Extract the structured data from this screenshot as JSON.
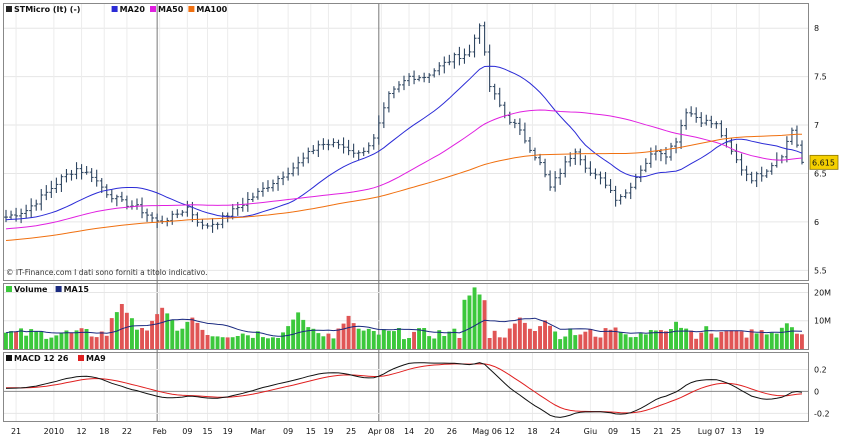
{
  "chart_data": [
    {
      "type": "ohlc",
      "panel": "price",
      "legend": [
        {
          "label": "STMicro (It) (-)",
          "color": "#222222"
        },
        {
          "label": "MA20",
          "color": "#2b2bd6"
        },
        {
          "label": "MA50",
          "color": "#e020e0"
        },
        {
          "label": "MA100",
          "color": "#f07010"
        }
      ],
      "yticks": [
        "8",
        "7.5",
        "7",
        "6.5",
        "6",
        "5.5"
      ],
      "ylim": [
        5.4,
        8.25
      ],
      "last_value_label": "6.615",
      "last_value": 6.615,
      "source_note": "© IT-Finance.com  I dati sono forniti a titolo indicativo.",
      "price_anchors": [
        [
          0,
          6.05
        ],
        [
          4,
          6.12
        ],
        [
          8,
          6.3
        ],
        [
          11,
          6.45
        ],
        [
          14,
          6.55
        ],
        [
          17,
          6.48
        ],
        [
          20,
          6.3
        ],
        [
          23,
          6.2
        ],
        [
          26,
          6.15
        ],
        [
          30,
          6.0
        ],
        [
          33,
          6.05
        ],
        [
          36,
          6.15
        ],
        [
          39,
          5.95
        ],
        [
          42,
          6.0
        ],
        [
          46,
          6.15
        ],
        [
          50,
          6.3
        ],
        [
          54,
          6.45
        ],
        [
          58,
          6.6
        ],
        [
          62,
          6.8
        ],
        [
          66,
          6.8
        ],
        [
          70,
          6.7
        ],
        [
          73,
          6.85
        ],
        [
          76,
          7.3
        ],
        [
          78,
          7.4
        ],
        [
          80,
          7.5
        ],
        [
          83,
          7.5
        ],
        [
          86,
          7.6
        ],
        [
          89,
          7.7
        ],
        [
          92,
          7.75
        ],
        [
          94,
          8.05
        ],
        [
          96,
          7.4
        ],
        [
          99,
          7.1
        ],
        [
          101,
          7.0
        ],
        [
          103,
          6.85
        ],
        [
          106,
          6.6
        ],
        [
          108,
          6.35
        ],
        [
          111,
          6.6
        ],
        [
          113,
          6.75
        ],
        [
          116,
          6.5
        ],
        [
          119,
          6.4
        ],
        [
          121,
          6.25
        ],
        [
          123,
          6.3
        ],
        [
          126,
          6.55
        ],
        [
          129,
          6.75
        ],
        [
          131,
          6.7
        ],
        [
          133,
          6.85
        ],
        [
          135,
          7.15
        ],
        [
          138,
          7.05
        ],
        [
          141,
          7.0
        ],
        [
          143,
          6.8
        ],
        [
          146,
          6.55
        ],
        [
          148,
          6.45
        ],
        [
          150,
          6.5
        ],
        [
          152,
          6.6
        ],
        [
          154,
          6.7
        ],
        [
          156,
          6.95
        ],
        [
          157,
          6.8
        ],
        [
          158,
          6.615
        ]
      ]
    },
    {
      "type": "bar",
      "panel": "volume",
      "legend": [
        {
          "label": "Volume",
          "color": "#3cc83c"
        },
        {
          "label": "MA15",
          "color": "#1a2a80"
        }
      ],
      "yticks": [
        "20M",
        "10M"
      ],
      "ylim": [
        0,
        23
      ],
      "colors": {
        "up": "#3cc83c",
        "down": "#e05555"
      },
      "peaks": [
        [
          23,
          15
        ],
        [
          31,
          14
        ],
        [
          37,
          11
        ],
        [
          58,
          12
        ],
        [
          68,
          11
        ],
        [
          93,
          21
        ],
        [
          102,
          11
        ],
        [
          107,
          10
        ],
        [
          121,
          7.5
        ],
        [
          133,
          9
        ],
        [
          139,
          7.5
        ],
        [
          155,
          9
        ]
      ]
    },
    {
      "type": "line",
      "panel": "macd",
      "legend": [
        {
          "label": "MACD 12 26",
          "color": "#111111"
        },
        {
          "label": "MA9",
          "color": "#e02020"
        }
      ],
      "yticks": [
        "0.2",
        "0",
        "-0.2"
      ],
      "ylim": [
        -0.27,
        0.35
      ]
    }
  ],
  "x_axis": {
    "labels": [
      {
        "text": "21",
        "bar": 2
      },
      {
        "text": "2010",
        "bar": 9.5
      },
      {
        "text": "12",
        "bar": 15
      },
      {
        "text": "18",
        "bar": 19.5
      },
      {
        "text": "22",
        "bar": 24
      },
      {
        "text": "Feb",
        "bar": 30.5
      },
      {
        "text": "09",
        "bar": 36
      },
      {
        "text": "15",
        "bar": 40
      },
      {
        "text": "19",
        "bar": 44
      },
      {
        "text": "Mar",
        "bar": 50
      },
      {
        "text": "09",
        "bar": 56
      },
      {
        "text": "15",
        "bar": 60.5
      },
      {
        "text": "19",
        "bar": 64
      },
      {
        "text": "25",
        "bar": 68.5
      },
      {
        "text": "Apr 08",
        "bar": 74.5
      },
      {
        "text": "14",
        "bar": 80
      },
      {
        "text": "20",
        "bar": 84
      },
      {
        "text": "26",
        "bar": 88.5
      },
      {
        "text": "Mag 06",
        "bar": 95.5
      },
      {
        "text": "12",
        "bar": 100
      },
      {
        "text": "18",
        "bar": 104.5
      },
      {
        "text": "24",
        "bar": 109
      },
      {
        "text": "Giu",
        "bar": 116
      },
      {
        "text": "09",
        "bar": 120.5
      },
      {
        "text": "15",
        "bar": 125
      },
      {
        "text": "21",
        "bar": 129.5
      },
      {
        "text": "25",
        "bar": 133
      },
      {
        "text": "Lug 07",
        "bar": 140
      },
      {
        "text": "13",
        "bar": 145
      },
      {
        "text": "19",
        "bar": 149.5
      }
    ],
    "year_separators": [
      30,
      74
    ]
  }
}
